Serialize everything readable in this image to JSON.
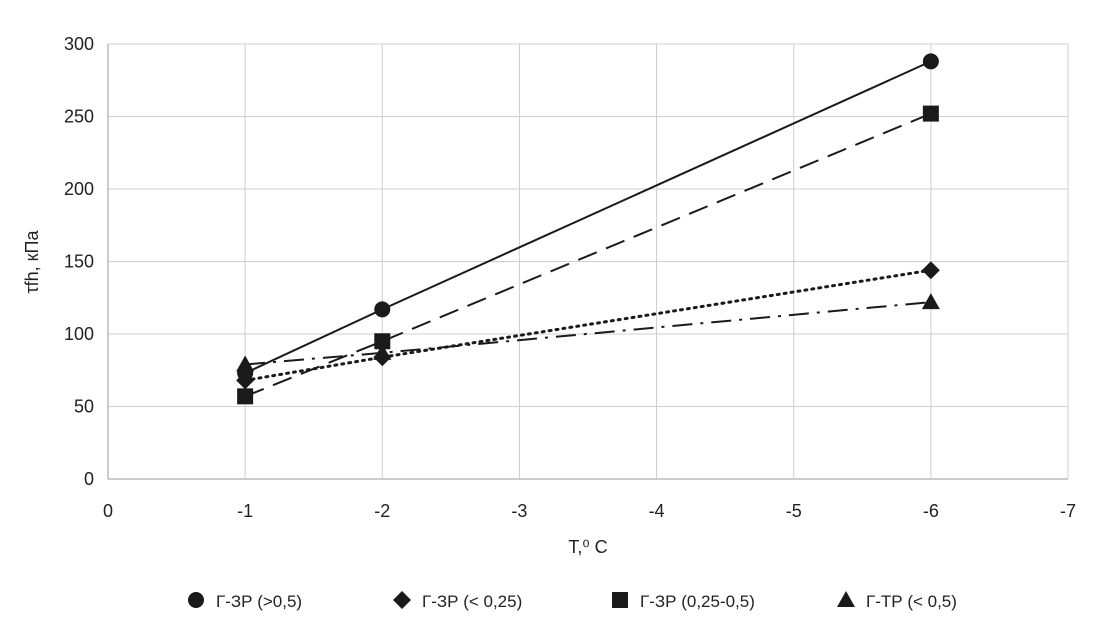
{
  "chart_data": {
    "type": "line",
    "xlabel": "T,⁰ С",
    "ylabel": "τfh, кПа",
    "xlim": [
      0,
      -7
    ],
    "ylim": [
      0,
      300
    ],
    "x_ticks": [
      "0",
      "-1",
      "-2",
      "-3",
      "-4",
      "-5",
      "-6",
      "-7"
    ],
    "y_ticks": [
      "0",
      "50",
      "100",
      "150",
      "200",
      "250",
      "300"
    ],
    "grid": true,
    "legend_position": "bottom",
    "series": [
      {
        "name": "Г-ЗР (>0,5)",
        "marker": "circle",
        "line_style": "solid",
        "x": [
          -1,
          -2,
          -6
        ],
        "y": [
          73,
          117,
          288
        ]
      },
      {
        "name": "Г-ЗР (< 0,25)",
        "marker": "diamond",
        "line_style": "dotted",
        "x": [
          -1,
          -2,
          -6
        ],
        "y": [
          68,
          84,
          144
        ]
      },
      {
        "name": "Г-ЗР (0,25-0,5)",
        "marker": "square",
        "line_style": "dashed",
        "x": [
          -1,
          -2,
          -6
        ],
        "y": [
          57,
          95,
          252
        ]
      },
      {
        "name": "Г-ТР  (< 0,5)",
        "marker": "triangle",
        "line_style": "dash-dot",
        "x": [
          -1,
          -2,
          -6
        ],
        "y": [
          79,
          87,
          122
        ]
      }
    ]
  }
}
